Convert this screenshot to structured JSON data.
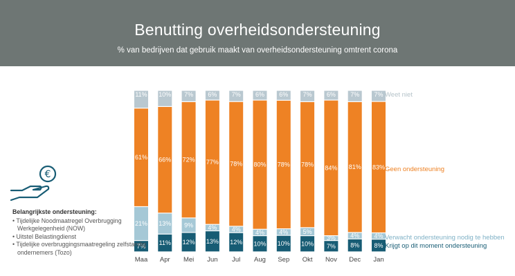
{
  "header": {
    "title": "Benutting overheidsondersteuning",
    "subtitle": "% van bedrijven dat gebruik maakt van overheidsondersteuning omtrent corona"
  },
  "info": {
    "title": "Belangrijkste ondersteuning:",
    "items": [
      "• Tijdelijke Noodmaatregel Overbrugging Werkgelegenheid (NOW)",
      "• Uitstel Belastingdienst",
      "• Tijdelijke overbruggingsmaatregeling zelfstandig ondernemers (Tozo)"
    ],
    "icon": "euro-hand-icon"
  },
  "colors": {
    "header_bg": "#6e7674",
    "krijgt": "#175c74",
    "verwacht": "#a5c8d6",
    "geen": "#ee8224",
    "weet_niet": "#b9c8d0"
  },
  "chart_data": {
    "type": "bar",
    "stacked": true,
    "categories": [
      "Maa",
      "Apr",
      "Mei",
      "Jun",
      "Jul",
      "Aug",
      "Sep",
      "Okt",
      "Nov",
      "Dec",
      "Jan"
    ],
    "series": [
      {
        "name": "Krijgt op dit moment ondersteuning",
        "values": [
          7,
          11,
          12,
          13,
          12,
          10,
          10,
          10,
          7,
          8,
          8
        ],
        "labels": [
          "7%",
          "11%",
          "12%",
          "13%",
          "12%",
          "10%",
          "10%",
          "10%",
          "7%",
          "8%",
          "8%"
        ]
      },
      {
        "name": "Verwacht ondersteuning nodig te hebben",
        "values": [
          21,
          13,
          9,
          4,
          4,
          4,
          4,
          5,
          3,
          4,
          4
        ],
        "labels": [
          "21%",
          "13%",
          "9%",
          "4%",
          "4%",
          "4%",
          "4%",
          "5%",
          "3%",
          "4%",
          "4%"
        ]
      },
      {
        "name": "Geen ondersteuning",
        "values": [
          61,
          66,
          72,
          77,
          78,
          80,
          78,
          78,
          84,
          81,
          83
        ],
        "labels": [
          "61%",
          "66%",
          "72%",
          "77%",
          "78%",
          "80%",
          "78%",
          "78%",
          "84%",
          "81%",
          "83%"
        ]
      },
      {
        "name": "Weet niet",
        "values": [
          11,
          10,
          7,
          6,
          7,
          6,
          6,
          7,
          6,
          7,
          7
        ],
        "labels": [
          "11%",
          "10%",
          "7%",
          "6%",
          "7%",
          "6%",
          "6%",
          "7%",
          "6%",
          "7%",
          "7%"
        ]
      }
    ],
    "ylim": [
      0,
      100
    ],
    "grid": false,
    "legend": "right"
  }
}
